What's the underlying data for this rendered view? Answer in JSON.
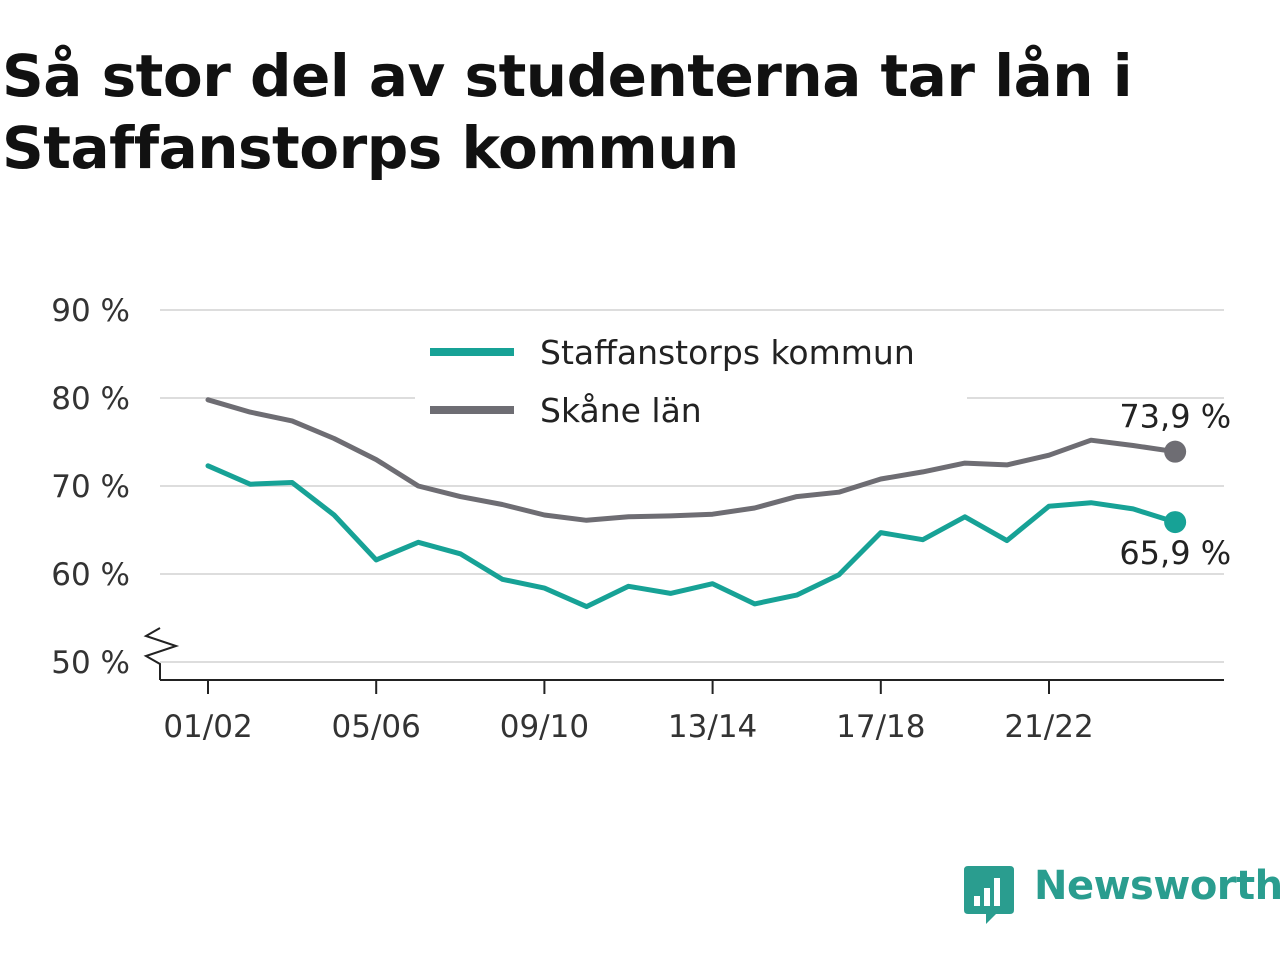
{
  "title": "Så stor del av studenterna tar lån i Staffanstorps kommun",
  "colors": {
    "staffanstorp": "#17a296",
    "skane": "#6e6d73",
    "grid": "#dddddd",
    "axis": "#222222",
    "brand": "#2a9d8f"
  },
  "brand": {
    "name": "Newsworthy",
    "icon": "bar-chart-speech-bubble-icon"
  },
  "chart_data": {
    "type": "line",
    "title": "Så stor del av studenterna tar lån i Staffanstorps kommun",
    "x": [
      "01/02",
      "02/03",
      "03/04",
      "04/05",
      "05/06",
      "06/07",
      "07/08",
      "08/09",
      "09/10",
      "10/11",
      "11/12",
      "12/13",
      "13/14",
      "14/15",
      "15/16",
      "16/17",
      "17/18",
      "18/19",
      "19/20",
      "20/21",
      "21/22",
      "22/23",
      "23/24",
      "24/25"
    ],
    "x_tick_labels": [
      "01/02",
      "05/06",
      "09/10",
      "13/14",
      "17/18",
      "21/22"
    ],
    "y_tick_labels": [
      "50 %",
      "60 %",
      "70 %",
      "80 %",
      "90 %"
    ],
    "y_ticks": [
      50,
      60,
      70,
      80,
      90
    ],
    "ylim": [
      50,
      90
    ],
    "y_axis_break": true,
    "grid": true,
    "legend": "top-center",
    "series": [
      {
        "name": "Staffanstorps kommun",
        "color": "#17a296",
        "values": [
          72.3,
          70.2,
          70.4,
          66.7,
          61.6,
          63.6,
          62.3,
          59.4,
          58.4,
          56.3,
          58.6,
          57.8,
          58.9,
          56.6,
          57.6,
          59.9,
          64.7,
          63.9,
          66.5,
          63.8,
          67.7,
          68.1,
          67.4,
          65.9
        ],
        "end_label": "65,9 %"
      },
      {
        "name": "Skåne län",
        "color": "#6e6d73",
        "values": [
          79.8,
          78.4,
          77.4,
          75.4,
          73.0,
          70.0,
          68.8,
          67.9,
          66.7,
          66.1,
          66.5,
          66.6,
          66.8,
          67.5,
          68.8,
          69.3,
          70.8,
          71.6,
          72.6,
          72.4,
          73.5,
          75.2,
          74.6,
          73.9
        ],
        "end_label": "73,9 %"
      }
    ]
  }
}
